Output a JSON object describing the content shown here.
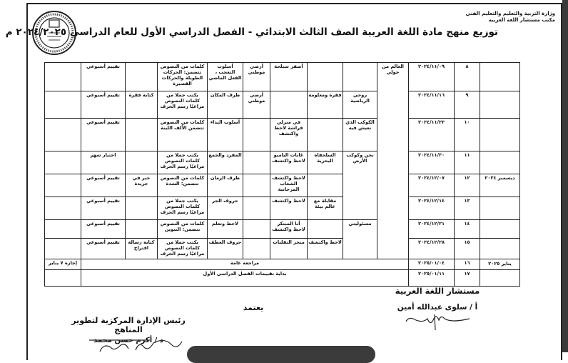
{
  "header": {
    "ministry": "وزارة التربية والتعليم والتعليم الفني",
    "office": "مكتب مستشار اللغة العربية",
    "title": "توزيع منهج مادة اللغة العربية الصف الثالث الابتدائي - الفصل الدراسي الأول للعام الدراسي ٢٠٢٤/٢٠٢٥ م",
    "logo_icon": "ministry-seal-icon"
  },
  "table": {
    "unit": "العالم من حولي",
    "themes": [
      {
        "label": "",
        "rows": 1
      },
      {
        "label": "روحي الرياضية",
        "rows": 1
      },
      {
        "label": "الكوكب الذي نعيش فيه",
        "rows": 1
      },
      {
        "label": "نحن وكوكب الأرض",
        "rows": 3
      },
      {
        "label": "مسئوليتي",
        "rows": 2
      }
    ],
    "rows": [
      {
        "month": "",
        "week": "٨",
        "date": "٢٠٢٤/١١/٠٩",
        "listening": "",
        "reading": "أصفر سبلحة",
        "poem": "أرضي موطني",
        "grammar": "أسلوب التعجب ، الفعل الماضي",
        "spelling": "كلمات من النصوص تتضمن: الحركات الطويلة والحركات القصيرة",
        "writing": "",
        "assessment": "تقييم أسبوعي",
        "notes": ""
      },
      {
        "month": "",
        "week": "٩",
        "date": "٢٠٢٤/١١/١٦",
        "listening": "فقرة ومعلومة",
        "reading": "",
        "poem": "أرضي موطني",
        "grammar": "ظرف المكان",
        "spelling": "يكتب جملا من كلمات النصوص مراعيًا رسم الحرف",
        "writing": "كتابة فقرة",
        "assessment": "تقييم أسبوعي",
        "notes": ""
      },
      {
        "month": "",
        "week": "١٠",
        "date": "٢٠٢٤/١١/٢٣",
        "listening": "",
        "reading": "في منزلي فراشة لاحظ واكتشف",
        "poem": "",
        "grammar": "أسلوب النداء",
        "spelling": "كلمات من النصوص تتضمن الألف اللينة",
        "writing": "",
        "assessment": "تقييم أسبوعي",
        "notes": ""
      },
      {
        "month": "",
        "week": "١١",
        "date": "٢٠٢٤/١١/٣٠",
        "listening": "السلحفاة البحرية",
        "reading": "غابات البامبو لاحظ واكتشف",
        "poem": "",
        "grammar": "المفرد والجمع",
        "spelling": "يكتب جملا من كلمات النصوص مراعيًا رسم الحرف",
        "writing": "",
        "assessment": "اختبار شهر",
        "notes": ""
      },
      {
        "month": "ديسمبر ٢٠٢٤",
        "week": "١٢",
        "date": "٢٠٢٤/١٢/٠٧",
        "listening": "",
        "reading": "لاحظ واكتشف الشعاب المرجانية",
        "poem": "",
        "grammar": "ظرف الزمان",
        "spelling": "كلمات من النصوص تتضمن: الشدة",
        "writing": "خبر في جريدة",
        "assessment": "تقييم أسبوعي",
        "notes": ""
      },
      {
        "month": "",
        "week": "١٣",
        "date": "٢٠٢٤/١٢/١٤",
        "listening": "مقابلة مع عالم بيئة",
        "reading": "لاحظ واكتشف",
        "poem": "",
        "grammar": "حروف الجر",
        "spelling": "يكتب جملا من كلمات النصوص مراعيًا رسم الحرف",
        "writing": "",
        "assessment": "تقييم أسبوعي",
        "notes": ""
      },
      {
        "month": "",
        "week": "١٤",
        "date": "٢٠٢٤/١٢/٢١",
        "listening": "",
        "reading": "أنا المبتكر لاحظ واكتشف",
        "poem": "",
        "grammar": "لاحظ وتعلم",
        "spelling": "كلمات من النصوص تتضمن: التنوين",
        "writing": "",
        "assessment": "تقييم أسبوعي",
        "notes": ""
      },
      {
        "month": "",
        "week": "١٥",
        "date": "٢٠٢٤/١٢/٢٨",
        "listening": "لاحظ واكتشف",
        "reading": "متجر التقلبات",
        "poem": "",
        "grammar": "حروف العطف",
        "spelling": "يكتب جملا من كلمات النصوص مراعيًا رسم الحرف",
        "writing": "كتابة رسالة اقتراح",
        "assessment": "تقييم أسبوعي",
        "notes": ""
      }
    ],
    "summary_rows": [
      {
        "month": "يناير ٢٠٢٥",
        "week": "١٦",
        "date": "٢٠٢٥/٠١/٠٤",
        "text": "مراجعة عامة",
        "notes": "إجازة ٧ يناير"
      },
      {
        "month": "",
        "week": "١٧",
        "date": "٢٠٢٥/٠١/١١",
        "text": "بداية تقييمات الفصل الدراسي الأول",
        "notes": ""
      }
    ]
  },
  "signatures": {
    "advisor_title": "مستشار اللغة العربية",
    "advisor_name": "أ / سلوى عبدالله أمين",
    "approve": "يعتمد",
    "head_title": "رئيس الإدارة المركزية لتطوير المناهج",
    "head_name": "د / أكرم حسن محمد"
  }
}
